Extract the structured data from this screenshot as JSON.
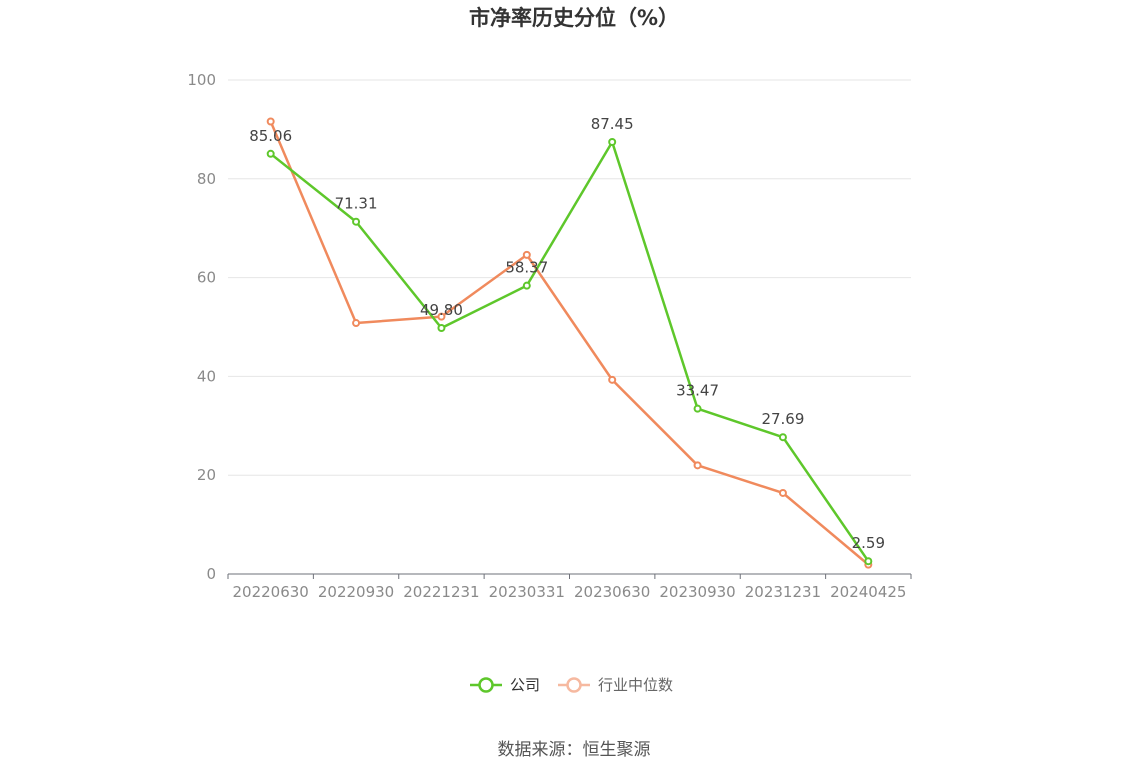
{
  "chart_data": {
    "type": "line",
    "title": "市净率历史分位（%）",
    "categories": [
      "20220630",
      "20220930",
      "20221231",
      "20230331",
      "20230630",
      "20230930",
      "20231231",
      "20240425"
    ],
    "ylim": [
      0,
      100
    ],
    "yticks": [
      0,
      20,
      40,
      60,
      80,
      100
    ],
    "grid": true,
    "legend_position": "bottom-center",
    "series": [
      {
        "name": "公司",
        "color": "#5ec72b",
        "values": [
          85.06,
          71.31,
          49.8,
          58.37,
          87.45,
          33.47,
          27.69,
          2.59
        ],
        "labels": [
          "85.06",
          "71.31",
          "49.80",
          "58.37",
          "87.45",
          "33.47",
          "27.69",
          "2.59"
        ]
      },
      {
        "name": "行业中位数",
        "color": "#f08a5d",
        "legend_color": "#f6b9a0",
        "values": [
          91.6,
          50.8,
          52.1,
          64.6,
          39.3,
          22.0,
          16.4,
          1.9
        ]
      }
    ]
  },
  "source": "数据来源：恒生聚源"
}
